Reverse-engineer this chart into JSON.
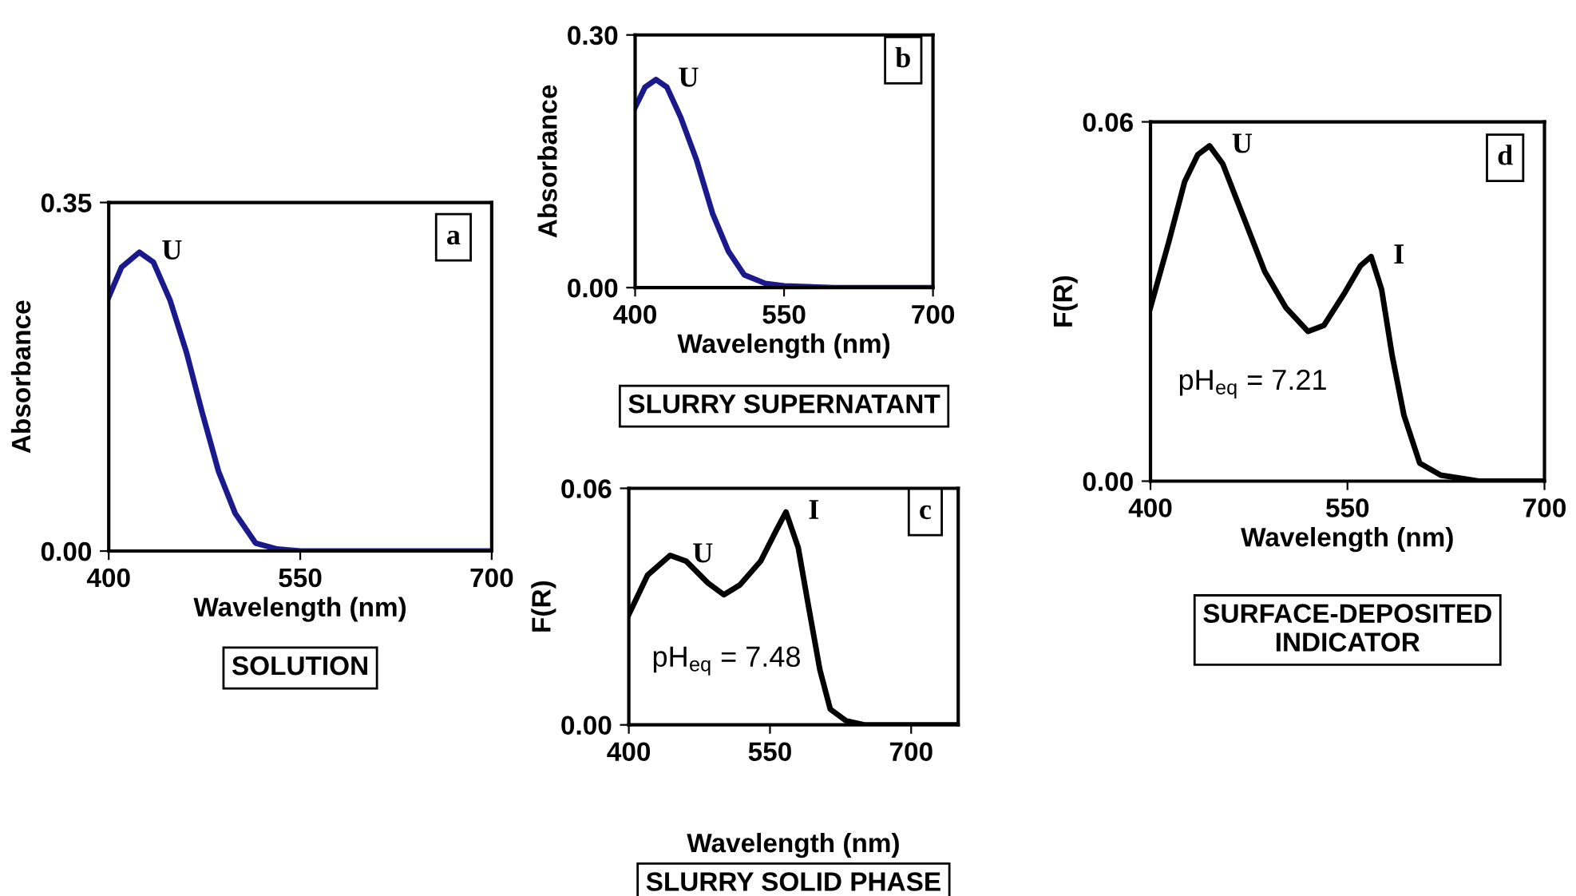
{
  "chart_data": [
    {
      "type": "line",
      "xlabel": "Wavelength (nm)",
      "ylabel": "Absorbance",
      "xlim": [
        400,
        700
      ],
      "ylim": [
        0,
        0.35
      ],
      "xticks": [
        400,
        550,
        700
      ],
      "yticks": [
        {
          "value": 0,
          "label": "0.00"
        },
        {
          "value": 0.35,
          "label": "0.35"
        }
      ],
      "grid": false,
      "legend": false,
      "marker": "none",
      "line_style": "solid",
      "series": [
        {
          "color": "#1a1a8c",
          "x": [
            400,
            410,
            424,
            435,
            448,
            461,
            473,
            486,
            499,
            515,
            532,
            550,
            600,
            650,
            700
          ],
          "values": [
            0.255,
            0.285,
            0.3,
            0.29,
            0.252,
            0.199,
            0.14,
            0.08,
            0.038,
            0.008,
            0.002,
            0,
            0,
            0,
            0
          ]
        }
      ],
      "annotations": [
        "a",
        "SOLUTION",
        {
          "text": "U",
          "x": 424,
          "y": 0.3
        }
      ]
    },
    {
      "type": "line",
      "xlabel": "Wavelength (nm)",
      "ylabel": "Absorbance",
      "xlim": [
        400,
        700
      ],
      "ylim": [
        0,
        0.3
      ],
      "xticks": [
        400,
        550,
        700
      ],
      "yticks": [
        {
          "value": 0,
          "label": "0.00"
        },
        {
          "value": 0.3,
          "label": "0.30"
        }
      ],
      "grid": false,
      "legend": false,
      "marker": "none",
      "line_style": "solid",
      "series": [
        {
          "color": "#1a1a8c",
          "x": [
            400,
            410,
            421,
            432,
            446,
            462,
            478,
            494,
            510,
            531,
            550,
            600,
            650,
            700
          ],
          "values": [
            0.214,
            0.238,
            0.247,
            0.238,
            0.202,
            0.151,
            0.088,
            0.043,
            0.015,
            0.005,
            0.002,
            0,
            0,
            0
          ]
        }
      ],
      "annotations": [
        "b",
        "SLURRY SUPERNATANT",
        {
          "text": "U",
          "x": 421,
          "y": 0.247
        }
      ]
    },
    {
      "type": "line",
      "xlabel": "Wavelength (nm)",
      "ylabel": "F(R)",
      "xlim": [
        400,
        750
      ],
      "ylim": [
        0,
        0.06
      ],
      "xticks": [
        400,
        550,
        700
      ],
      "yticks": [
        {
          "value": 0,
          "label": "0.00"
        },
        {
          "value": 0.06,
          "label": "0.06"
        }
      ],
      "grid": false,
      "legend": false,
      "marker": "none",
      "line_style": "solid",
      "series": [
        {
          "color": "#000000",
          "x": [
            400,
            420,
            444,
            461,
            484,
            501,
            518,
            540,
            557,
            567,
            580,
            591,
            603,
            614,
            631,
            650,
            700,
            750
          ],
          "values": [
            0.028,
            0.038,
            0.043,
            0.0415,
            0.036,
            0.033,
            0.0355,
            0.0415,
            0.0495,
            0.054,
            0.045,
            0.03,
            0.014,
            0.004,
            0.001,
            0,
            0,
            0
          ]
        }
      ],
      "annotations": [
        "c",
        "SLURRY SOLID PHASE",
        "pH$_{eq}$ = 7.48",
        {
          "text": "U",
          "x": 444,
          "y": 0.043
        },
        {
          "text": "I",
          "x": 567,
          "y": 0.054
        }
      ]
    },
    {
      "type": "line",
      "xlabel": "Wavelength (nm)",
      "ylabel": "F(R)",
      "xlim": [
        400,
        700
      ],
      "ylim": [
        0,
        0.06
      ],
      "xticks": [
        400,
        550,
        700
      ],
      "yticks": [
        {
          "value": 0,
          "label": "0.00"
        },
        {
          "value": 0.06,
          "label": "0.06"
        }
      ],
      "grid": false,
      "legend": false,
      "marker": "none",
      "line_style": "solid",
      "series": [
        {
          "color": "#000000",
          "x": [
            400,
            414,
            426,
            436,
            445,
            455,
            471,
            487,
            503,
            520,
            532,
            548,
            560,
            568,
            576,
            584,
            593,
            605,
            621,
            650,
            700
          ],
          "values": [
            0.029,
            0.04,
            0.05,
            0.0545,
            0.056,
            0.053,
            0.044,
            0.035,
            0.029,
            0.025,
            0.026,
            0.0315,
            0.036,
            0.0375,
            0.032,
            0.021,
            0.011,
            0.003,
            0.001,
            0,
            0
          ]
        }
      ],
      "annotations": [
        "d",
        "SURFACE-DEPOSITED\nINDICATOR",
        "pH$_{eq}$ = 7.21",
        {
          "text": "U",
          "x": 445,
          "y": 0.056
        },
        {
          "text": "I",
          "x": 568,
          "y": 0.0375
        }
      ]
    }
  ]
}
